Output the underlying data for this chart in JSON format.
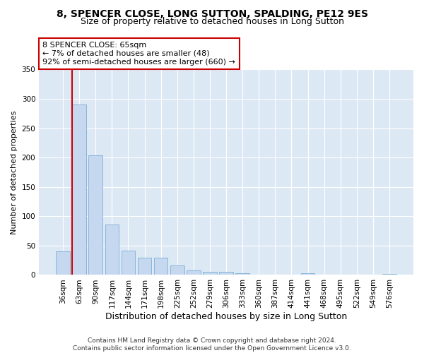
{
  "title1": "8, SPENCER CLOSE, LONG SUTTON, SPALDING, PE12 9ES",
  "title2": "Size of property relative to detached houses in Long Sutton",
  "xlabel": "Distribution of detached houses by size in Long Sutton",
  "ylabel": "Number of detached properties",
  "categories": [
    "36sqm",
    "63sqm",
    "90sqm",
    "117sqm",
    "144sqm",
    "171sqm",
    "198sqm",
    "225sqm",
    "252sqm",
    "279sqm",
    "306sqm",
    "333sqm",
    "360sqm",
    "387sqm",
    "414sqm",
    "441sqm",
    "468sqm",
    "495sqm",
    "522sqm",
    "549sqm",
    "576sqm"
  ],
  "values": [
    40,
    290,
    204,
    86,
    41,
    30,
    30,
    16,
    8,
    5,
    5,
    3,
    0,
    0,
    0,
    3,
    0,
    0,
    0,
    0,
    2
  ],
  "bar_color": "#c5d8f0",
  "bar_edge_color": "#7bafd4",
  "vline_color": "#cc0000",
  "annotation_text": "8 SPENCER CLOSE: 65sqm\n← 7% of detached houses are smaller (48)\n92% of semi-detached houses are larger (660) →",
  "annotation_box_color": "#ffffff",
  "annotation_box_edge_color": "#cc0000",
  "ylim": [
    0,
    350
  ],
  "yticks": [
    0,
    50,
    100,
    150,
    200,
    250,
    300,
    350
  ],
  "bg_color": "#dde8f5",
  "footer": "Contains HM Land Registry data © Crown copyright and database right 2024.\nContains public sector information licensed under the Open Government Licence v3.0.",
  "title1_fontsize": 10,
  "title2_fontsize": 9,
  "xlabel_fontsize": 9,
  "ylabel_fontsize": 8,
  "tick_fontsize": 7.5,
  "footer_fontsize": 6.5
}
